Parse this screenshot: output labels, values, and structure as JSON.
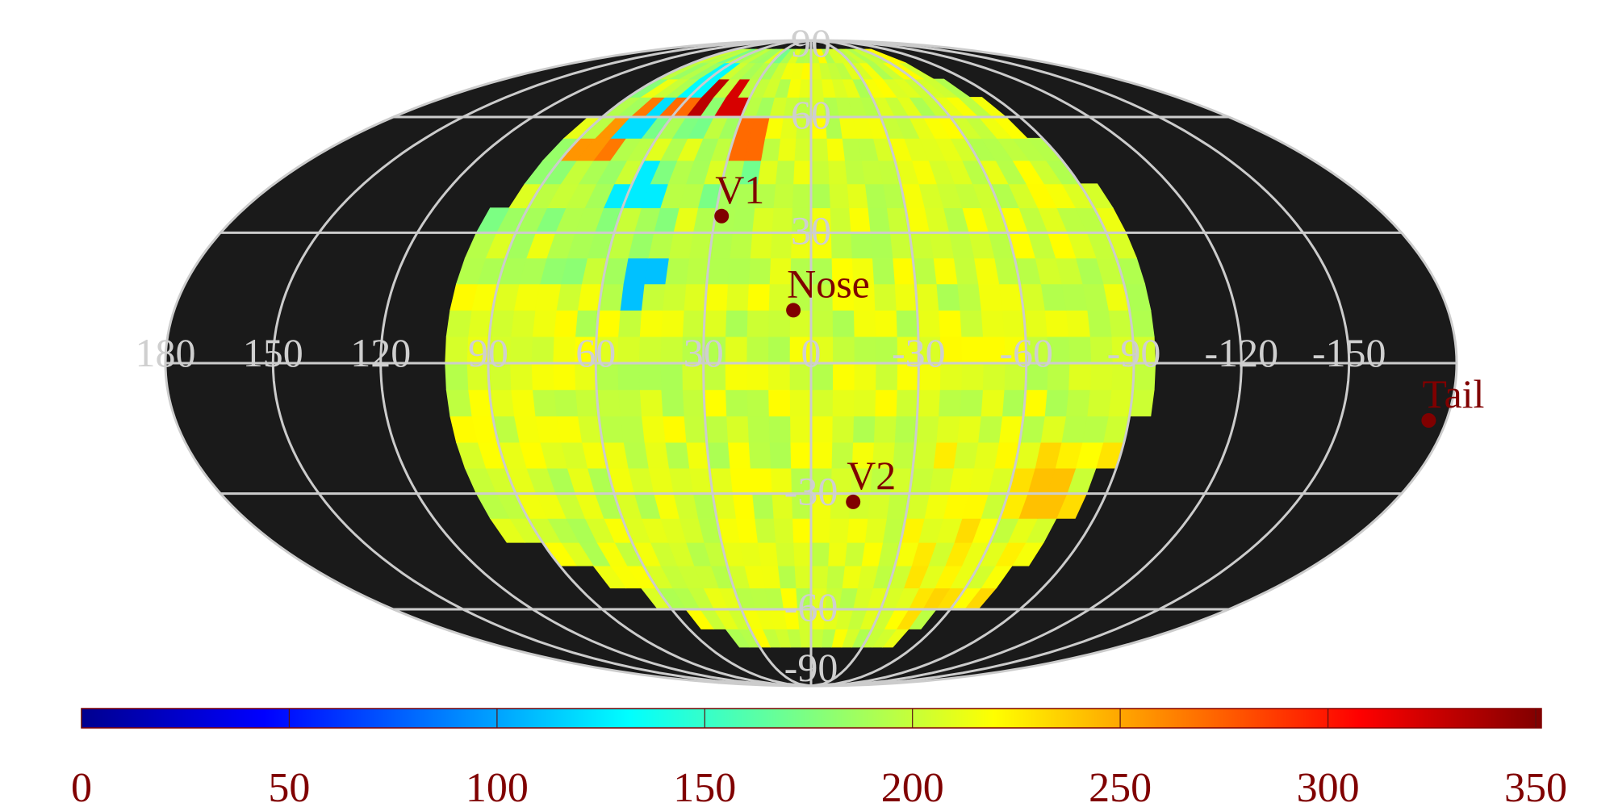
{
  "chart_data": {
    "type": "heatmap",
    "projection": "mollweide",
    "lon_ticks": [
      "180",
      "150",
      "120",
      "90",
      "60",
      "30",
      "0",
      "-30",
      "-60",
      "-90",
      "-120",
      "-150"
    ],
    "lat_ticks": [
      "90",
      "60",
      "30",
      "-30",
      "-60",
      "-90"
    ],
    "markers": [
      {
        "label": "V1",
        "lon": 28,
        "lat": 34
      },
      {
        "label": "Nose",
        "lon": 5,
        "lat": 12
      },
      {
        "label": "V2",
        "lon": -13,
        "lat": -32
      },
      {
        "label": "Tail",
        "lon": -175,
        "lat": -13
      }
    ],
    "colorbar": {
      "min": 0,
      "max": 350,
      "ticks": [
        "0",
        "50",
        "100",
        "150",
        "200",
        "250",
        "300",
        "350"
      ]
    },
    "data_region": {
      "lon_min": -95,
      "lon_max": 100,
      "lat_min": -73,
      "lat_max": 86,
      "typical_value": 205
    },
    "hotspots": [
      {
        "lon": 55,
        "lat": 67,
        "value": 330
      },
      {
        "lon": 62,
        "lat": 65,
        "value": 270
      },
      {
        "lon": 72,
        "lat": 62,
        "value": 265
      },
      {
        "lon": 38,
        "lat": 64,
        "value": 320
      },
      {
        "lon": 80,
        "lat": 55,
        "value": 265
      },
      {
        "lon": 82,
        "lat": 52,
        "value": 255
      },
      {
        "lon": 25,
        "lat": 56,
        "value": 270
      },
      {
        "lon": 70,
        "lat": 58,
        "value": 120
      },
      {
        "lon": 58,
        "lat": 72,
        "value": 130
      },
      {
        "lon": 50,
        "lat": 20,
        "value": 110
      },
      {
        "lon": 57,
        "lat": 40,
        "value": 125
      },
      {
        "lon": -74,
        "lat": -30,
        "value": 240
      }
    ]
  }
}
